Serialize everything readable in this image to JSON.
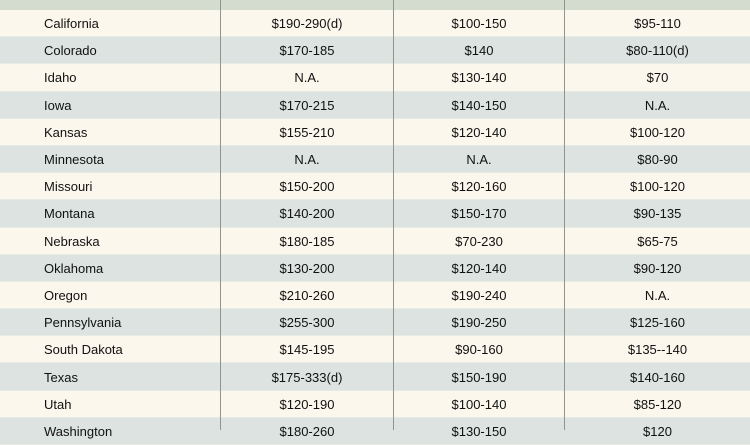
{
  "rows": [
    {
      "state": "California",
      "a": "$190-290(d)",
      "b": "$100-150",
      "c": "$95-110"
    },
    {
      "state": "Colorado",
      "a": "$170-185",
      "b": "$140",
      "c": "$80-110(d)"
    },
    {
      "state": "Idaho",
      "a": "N.A.",
      "b": "$130-140",
      "c": "$70"
    },
    {
      "state": "Iowa",
      "a": "$170-215",
      "b": "$140-150",
      "c": "N.A."
    },
    {
      "state": "Kansas",
      "a": "$155-210",
      "b": "$120-140",
      "c": "$100-120"
    },
    {
      "state": "Minnesota",
      "a": "N.A.",
      "b": "N.A.",
      "c": "$80-90"
    },
    {
      "state": "Missouri",
      "a": "$150-200",
      "b": "$120-160",
      "c": "$100-120"
    },
    {
      "state": "Montana",
      "a": "$140-200",
      "b": "$150-170",
      "c": "$90-135"
    },
    {
      "state": "Nebraska",
      "a": "$180-185",
      "b": "$70-230",
      "c": "$65-75"
    },
    {
      "state": "Oklahoma",
      "a": "$130-200",
      "b": "$120-140",
      "c": "$90-120"
    },
    {
      "state": "Oregon",
      "a": "$210-260",
      "b": "$190-240",
      "c": "N.A."
    },
    {
      "state": "Pennsylvania",
      "a": "$255-300",
      "b": "$190-250",
      "c": "$125-160"
    },
    {
      "state": "South Dakota",
      "a": "$145-195",
      "b": "$90-160",
      "c": "$135--140"
    },
    {
      "state": "Texas",
      "a": "$175-333(d)",
      "b": "$150-190",
      "c": "$140-160"
    },
    {
      "state": "Utah",
      "a": "$120-190",
      "b": "$100-140",
      "c": "$85-120"
    },
    {
      "state": "Washington",
      "a": "$180-260",
      "b": "$130-150",
      "c": "$120"
    }
  ]
}
